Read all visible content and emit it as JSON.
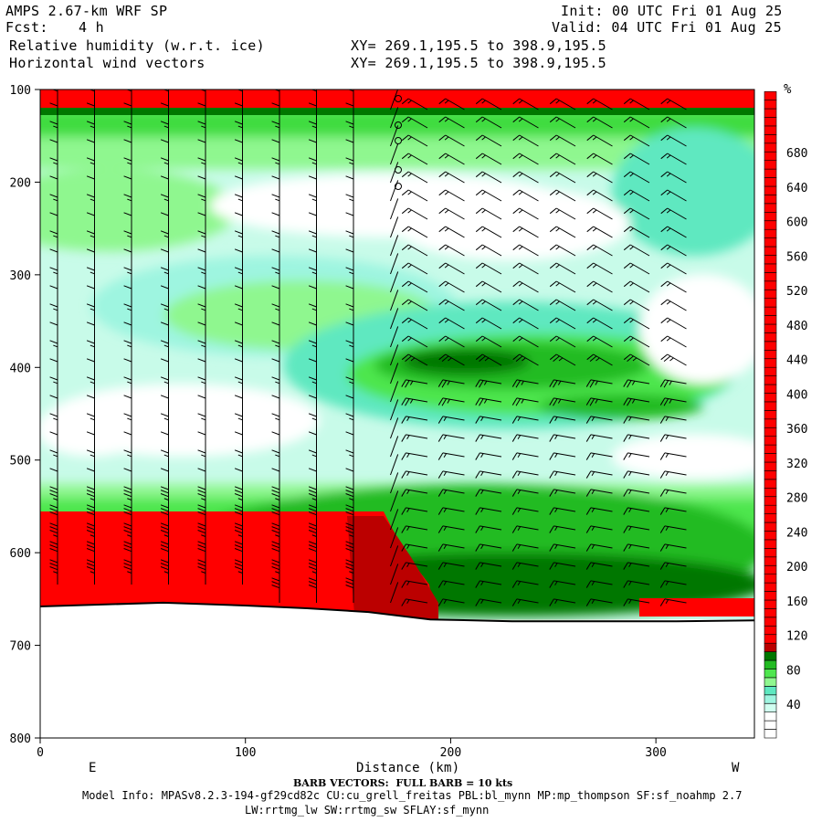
{
  "header": {
    "model_line": "AMPS 2.67-km WRF SP",
    "fcst_label": "Fcst:",
    "fcst_value": "4 h",
    "field1": "Relative humidity (w.r.t. ice)",
    "field2": "Horizontal wind vectors",
    "init": "Init: 00 UTC Fri 01 Aug 25",
    "valid": "Valid: 04 UTC Fri 01 Aug 25",
    "xy1": "XY= 269.1,195.5 to 398.9,195.5",
    "xy2": "XY= 269.1,195.5 to 398.9,195.5"
  },
  "footer": {
    "barb_note": "BARB VECTORS:  FULL BARB = 10 kts",
    "model_info": "Model Info: MPASv8.2.3-194-gf29cd82c CU:cu_grell_freitas PBL:bl_mynn MP:mp_thompson SF:sf_noahmp 2.7",
    "model_info2": "LW:rrtmg_lw SW:rrtmg_sw SFLAY:sf_mynn"
  },
  "chart_data": {
    "type": "heatmap",
    "title": "Relative humidity (w.r.t. ice)",
    "xlabel": "Distance (km)",
    "ylabel": "",
    "xlim": [
      0,
      348
    ],
    "ylim": [
      800,
      100
    ],
    "x_ticks": [
      0,
      100,
      200,
      300
    ],
    "y_ticks": [
      100,
      200,
      300,
      400,
      500,
      600,
      700,
      800
    ],
    "left_end_label": "E",
    "right_end_label": "W",
    "colorbar": {
      "unit": "%",
      "tick_labels": [
        40,
        80,
        120,
        160,
        200,
        240,
        280,
        320,
        360,
        400,
        440,
        480,
        520,
        560,
        600,
        640,
        680
      ],
      "bins": [
        {
          "lo": 0,
          "hi": 10,
          "color": "#ffffff"
        },
        {
          "lo": 10,
          "hi": 20,
          "color": "#ffffff"
        },
        {
          "lo": 20,
          "hi": 30,
          "color": "#ffffff"
        },
        {
          "lo": 30,
          "hi": 40,
          "color": "#d0fff0"
        },
        {
          "lo": 40,
          "hi": 50,
          "color": "#9ef5e0"
        },
        {
          "lo": 50,
          "hi": 60,
          "color": "#5ee8c0"
        },
        {
          "lo": 60,
          "hi": 70,
          "color": "#8ff78f"
        },
        {
          "lo": 70,
          "hi": 80,
          "color": "#4ee64e"
        },
        {
          "lo": 80,
          "hi": 90,
          "color": "#22bb22"
        },
        {
          "lo": 90,
          "hi": 100,
          "color": "#007700"
        },
        {
          "lo": 100,
          "hi": 110,
          "color": "#bb0000"
        },
        {
          "lo": 110,
          "hi": 700,
          "color": "#ff0000"
        }
      ]
    },
    "terrain_surface": [
      [
        0,
        658
      ],
      [
        30,
        656
      ],
      [
        60,
        654
      ],
      [
        100,
        657
      ],
      [
        130,
        660
      ],
      [
        160,
        664
      ],
      [
        190,
        672
      ],
      [
        230,
        674
      ],
      [
        270,
        674
      ],
      [
        310,
        674
      ],
      [
        348,
        673
      ]
    ],
    "humidity_regions": [
      {
        "level": "very-high",
        "pressure_range": [
          100,
          125
        ],
        "x_range": [
          0,
          348
        ]
      },
      {
        "level": "moist",
        "pressure_range": [
          125,
          190
        ],
        "x_range": [
          0,
          348
        ]
      },
      {
        "level": "dry",
        "pressure_range": [
          185,
          260
        ],
        "x_range": [
          150,
          300
        ]
      },
      {
        "level": "moist-core",
        "pressure_range": [
          380,
          470
        ],
        "x_range": [
          170,
          330
        ]
      },
      {
        "level": "dry",
        "pressure_range": [
          420,
          510
        ],
        "x_range": [
          30,
          180
        ]
      },
      {
        "level": "high",
        "pressure_range": [
          540,
          660
        ],
        "x_range": [
          0,
          200
        ]
      },
      {
        "level": "moist",
        "pressure_range": [
          520,
          672
        ],
        "x_range": [
          160,
          348
        ]
      }
    ]
  }
}
